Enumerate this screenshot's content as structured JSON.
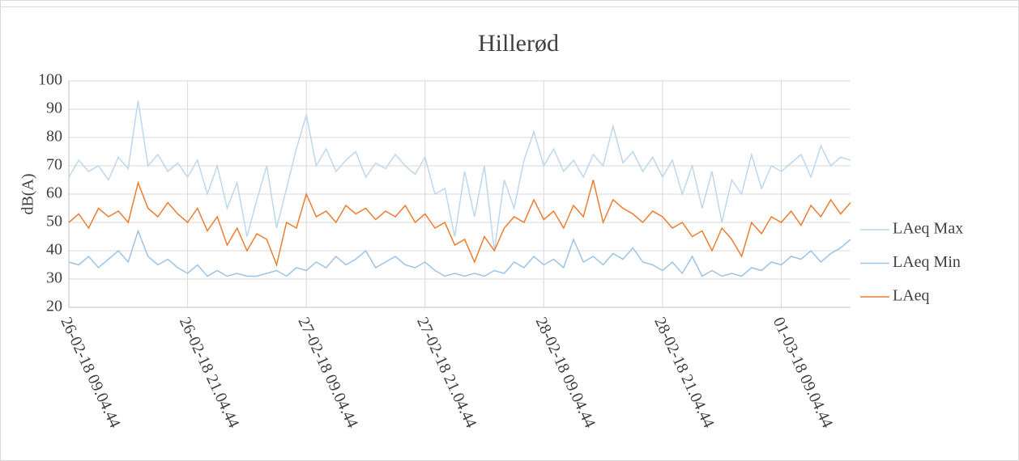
{
  "chart_data": {
    "type": "line",
    "title": "Hillerød",
    "y_label": "dB(A)",
    "categories": [
      "26-02-18 09.04.44",
      null,
      null,
      null,
      null,
      null,
      null,
      null,
      null,
      null,
      null,
      null,
      "26-02-18 21.04.44",
      null,
      null,
      null,
      null,
      null,
      null,
      null,
      null,
      null,
      null,
      null,
      "27-02-18 09.04.44",
      null,
      null,
      null,
      null,
      null,
      null,
      null,
      null,
      null,
      null,
      null,
      "27-02-18 21.04.44",
      null,
      null,
      null,
      null,
      null,
      null,
      null,
      null,
      null,
      null,
      null,
      "28-02-18 09.04.44",
      null,
      null,
      null,
      null,
      null,
      null,
      null,
      null,
      null,
      null,
      null,
      "28-02-18 21.04.44",
      null,
      null,
      null,
      null,
      null,
      null,
      null,
      null,
      null,
      null,
      null,
      "01-03-18 09.04.44",
      null,
      null,
      null,
      null,
      null,
      null,
      null
    ],
    "series": [
      {
        "name": "LAeq Max",
        "color": "#bdd7ee",
        "values": [
          66,
          72,
          68,
          70,
          65,
          73,
          69,
          93,
          70,
          74,
          68,
          71,
          66,
          72,
          60,
          70,
          55,
          64,
          45,
          58,
          70,
          48,
          62,
          76,
          88,
          70,
          76,
          68,
          72,
          75,
          66,
          71,
          69,
          74,
          70,
          67,
          73,
          60,
          62,
          45,
          68,
          52,
          70,
          40,
          65,
          55,
          72,
          82,
          70,
          76,
          68,
          72,
          66,
          74,
          70,
          84,
          71,
          75,
          68,
          73,
          66,
          72,
          60,
          70,
          55,
          68,
          50,
          65,
          60,
          74,
          62,
          70,
          68,
          71,
          74,
          66,
          77,
          70,
          73,
          72
        ]
      },
      {
        "name": "LAeq Min",
        "color": "#9dc3e6",
        "values": [
          36,
          35,
          38,
          34,
          37,
          40,
          36,
          47,
          38,
          35,
          37,
          34,
          32,
          35,
          31,
          33,
          31,
          32,
          31,
          31,
          32,
          33,
          31,
          34,
          33,
          36,
          34,
          38,
          35,
          37,
          40,
          34,
          36,
          38,
          35,
          34,
          36,
          33,
          31,
          32,
          31,
          32,
          31,
          33,
          32,
          36,
          34,
          38,
          35,
          37,
          34,
          44,
          36,
          38,
          35,
          39,
          37,
          41,
          36,
          35,
          33,
          36,
          32,
          38,
          31,
          33,
          31,
          32,
          31,
          34,
          33,
          36,
          35,
          38,
          37,
          40,
          36,
          39,
          41,
          44
        ]
      },
      {
        "name": "LAeq",
        "color": "#ed7d31",
        "values": [
          50,
          53,
          48,
          55,
          52,
          54,
          50,
          64,
          55,
          52,
          57,
          53,
          50,
          55,
          47,
          52,
          42,
          48,
          40,
          46,
          44,
          35,
          50,
          48,
          60,
          52,
          54,
          50,
          56,
          53,
          55,
          51,
          54,
          52,
          56,
          50,
          53,
          48,
          50,
          42,
          44,
          36,
          45,
          40,
          48,
          52,
          50,
          58,
          51,
          54,
          48,
          56,
          52,
          65,
          50,
          58,
          55,
          53,
          50,
          54,
          52,
          48,
          50,
          45,
          47,
          40,
          48,
          44,
          38,
          50,
          46,
          52,
          50,
          54,
          49,
          56,
          52,
          58,
          53,
          57
        ]
      }
    ],
    "ylim": [
      20,
      100
    ],
    "yticks": [
      20,
      30,
      40,
      50,
      60,
      70,
      80,
      90,
      100
    ],
    "grid": true,
    "legend": "right"
  }
}
